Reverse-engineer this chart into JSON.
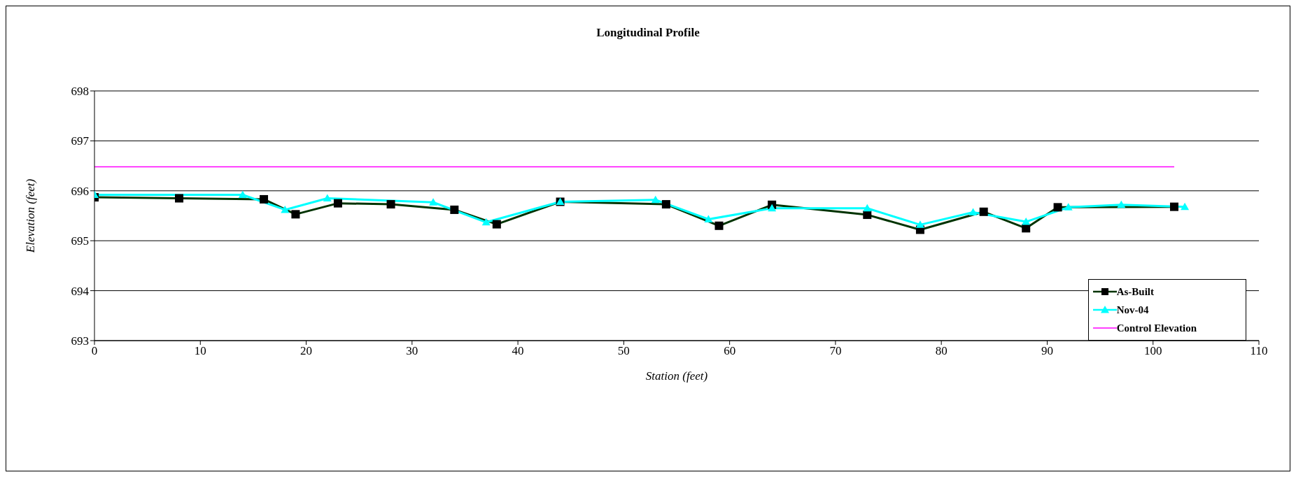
{
  "chart_data": {
    "type": "line",
    "title": "Longitudinal Profile",
    "xlabel": "Station (feet)",
    "ylabel": "Elevation (feet)",
    "xlim": [
      0,
      110
    ],
    "xticks": [
      0,
      10,
      20,
      30,
      40,
      50,
      60,
      70,
      80,
      90,
      100,
      110
    ],
    "ylim": [
      693,
      698
    ],
    "yticks": [
      693,
      694,
      695,
      696,
      697,
      698
    ],
    "grid": "y",
    "legend": "bottom right",
    "series": [
      {
        "name": "As-Built",
        "color": "#003300",
        "marker": "square",
        "x": [
          0,
          8,
          16,
          19,
          23,
          28,
          34,
          38,
          44,
          54,
          59,
          64,
          73,
          78,
          84,
          88,
          91,
          102
        ],
        "values": [
          695.87,
          695.85,
          695.83,
          695.53,
          695.75,
          695.73,
          695.62,
          695.33,
          695.78,
          695.73,
          695.3,
          695.72,
          695.52,
          695.22,
          695.58,
          695.25,
          695.67,
          695.68
        ]
      },
      {
        "name": "Nov-04",
        "color": "#00ffff",
        "marker": "triangle",
        "x": [
          0,
          14,
          18,
          22,
          32,
          37,
          44,
          53,
          58,
          64,
          73,
          78,
          83,
          88,
          92,
          97,
          103
        ],
        "values": [
          695.92,
          695.92,
          695.62,
          695.85,
          695.77,
          695.37,
          695.78,
          695.82,
          695.43,
          695.65,
          695.65,
          695.32,
          695.57,
          695.38,
          695.67,
          695.72,
          695.68
        ]
      },
      {
        "name": "Control Elevation",
        "color": "#ff00ff",
        "marker": "none",
        "x": [
          0,
          102
        ],
        "values": [
          696.48,
          696.48
        ]
      }
    ]
  }
}
